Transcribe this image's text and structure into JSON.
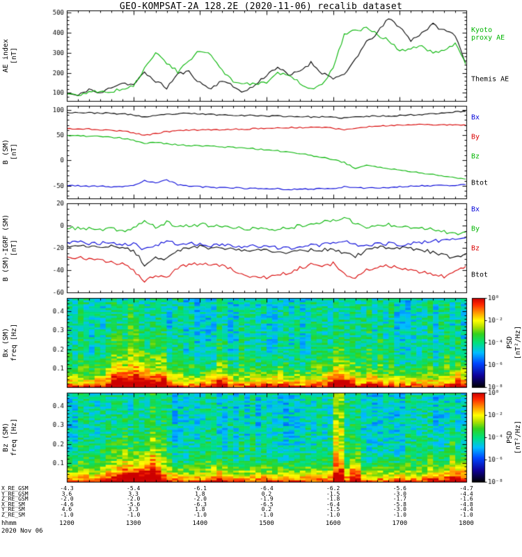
{
  "title": "GEO-KOMPSAT-2A 128.2E (2020-11-06) recalib dataset",
  "x_axis": {
    "range_hours": [
      0,
      6
    ],
    "tick_hours": [
      0,
      1,
      2,
      3,
      4,
      5,
      6
    ]
  },
  "chart_data": [
    {
      "type": "line",
      "name": "ae-index",
      "ylabel": "AE index [nT]",
      "ylabel_display": "AE index\n[nT]",
      "ylim": [
        60,
        510
      ],
      "yticks": [
        100,
        200,
        300,
        400,
        500
      ],
      "yminor_div": 5,
      "jitter": 8,
      "seed": 11,
      "series": [
        {
          "name": "Themis AE",
          "color": "#000000",
          "values": [
            100,
            85,
            120,
            95,
            130,
            150,
            140,
            200,
            160,
            125,
            195,
            205,
            150,
            120,
            165,
            130,
            105,
            140,
            190,
            230,
            185,
            210,
            250,
            200,
            175,
            185,
            270,
            350,
            400,
            470,
            430,
            360,
            400,
            440,
            410,
            390,
            240
          ]
        },
        {
          "name": "Kyoto proxy AE",
          "color": "#00b400",
          "values": [
            95,
            90,
            100,
            110,
            105,
            120,
            135,
            220,
            300,
            250,
            205,
            260,
            310,
            290,
            210,
            160,
            150,
            145,
            150,
            200,
            185,
            150,
            120,
            135,
            230,
            390,
            410,
            420,
            390,
            360,
            305,
            320,
            330,
            300,
            310,
            350,
            235
          ]
        }
      ],
      "legend": [
        {
          "label": "Kyoto\nproxy AE",
          "color": "#00b400"
        },
        {
          "label": "Themis AE",
          "color": "#000000"
        }
      ]
    },
    {
      "type": "line",
      "name": "b-sm",
      "ylabel": "B (SM) [nT]",
      "ylabel_display": "B (SM)\n[nT]",
      "ylim": [
        -75,
        108
      ],
      "yticks": [
        -50,
        0,
        50,
        100
      ],
      "yminor_div": 5,
      "jitter": 1.3,
      "seed": 23,
      "series": [
        {
          "name": "Btot",
          "color": "#000000",
          "values": [
            95,
            95,
            94,
            94,
            93,
            92,
            90,
            86,
            88,
            91,
            92,
            93,
            92,
            91,
            90,
            90,
            89,
            89,
            88,
            88,
            87,
            87,
            86,
            86,
            85,
            84,
            86,
            87,
            88,
            88,
            89,
            90,
            91,
            93,
            94,
            96,
            97
          ]
        },
        {
          "name": "By",
          "color": "#d80000",
          "values": [
            63,
            62,
            62,
            61,
            60,
            58,
            55,
            50,
            53,
            57,
            59,
            60,
            60,
            61,
            61,
            62,
            62,
            63,
            63,
            64,
            65,
            65,
            66,
            66,
            64,
            60,
            63,
            66,
            68,
            69,
            70,
            71,
            71,
            71,
            70,
            70,
            70
          ]
        },
        {
          "name": "Bz",
          "color": "#00b400",
          "values": [
            50,
            49,
            48,
            47,
            46,
            44,
            40,
            34,
            36,
            33,
            31,
            30,
            29,
            28,
            27,
            26,
            25,
            23,
            21,
            19,
            17,
            14,
            10,
            6,
            2,
            -4,
            -16,
            -9,
            -13,
            -16,
            -19,
            -22,
            -25,
            -28,
            -31,
            -34,
            -37
          ]
        },
        {
          "name": "Bx",
          "color": "#0000d8",
          "values": [
            -50,
            -50,
            -51,
            -51,
            -52,
            -52,
            -50,
            -40,
            -44,
            -38,
            -48,
            -51,
            -52,
            -53,
            -54,
            -54,
            -55,
            -55,
            -56,
            -56,
            -57,
            -57,
            -56,
            -56,
            -55,
            -52,
            -54,
            -55,
            -54,
            -53,
            -52,
            -51,
            -50,
            -50,
            -49,
            -49,
            -48
          ]
        }
      ],
      "legend": [
        {
          "label": "Bx",
          "color": "#0000d8"
        },
        {
          "label": "By",
          "color": "#d80000"
        },
        {
          "label": "Bz",
          "color": "#00b400"
        },
        {
          "label": "Btot",
          "color": "#000000"
        }
      ]
    },
    {
      "type": "line",
      "name": "b-sm-minus-igrf",
      "ylabel": "B (SM)-IGRF (SM) [nT]",
      "ylabel_display": "B (SM)-IGRF (SM)\n[nT]",
      "ylim": [
        -60,
        20
      ],
      "yticks": [
        -60,
        -40,
        -20,
        0,
        20
      ],
      "yminor_div": 4,
      "jitter": 1.6,
      "seed": 37,
      "series": [
        {
          "name": "By",
          "color": "#00b400",
          "values": [
            -3,
            -2,
            -3,
            -4,
            -3,
            -5,
            -2,
            4,
            -2,
            3,
            -1,
            0,
            1,
            0,
            -1,
            -2,
            -3,
            -2,
            -4,
            -3,
            -2,
            0,
            2,
            3,
            4,
            8,
            2,
            -2,
            0,
            1,
            0,
            -1,
            -2,
            -3,
            -5,
            -8,
            -6
          ]
        },
        {
          "name": "Bx",
          "color": "#0000d8",
          "values": [
            -15,
            -15,
            -16,
            -16,
            -15,
            -17,
            -16,
            -22,
            -18,
            -14,
            -17,
            -16,
            -17,
            -18,
            -17,
            -18,
            -19,
            -18,
            -19,
            -20,
            -20,
            -19,
            -18,
            -17,
            -16,
            -14,
            -17,
            -18,
            -17,
            -16,
            -17,
            -16,
            -15,
            -14,
            -13,
            -12,
            -11
          ]
        },
        {
          "name": "Btot",
          "color": "#000000",
          "values": [
            -18,
            -18,
            -19,
            -19,
            -18,
            -20,
            -22,
            -35,
            -28,
            -30,
            -22,
            -20,
            -19,
            -20,
            -20,
            -21,
            -22,
            -21,
            -22,
            -23,
            -24,
            -23,
            -22,
            -22,
            -21,
            -25,
            -28,
            -22,
            -20,
            -19,
            -20,
            -21,
            -22,
            -24,
            -27,
            -29,
            -26
          ]
        },
        {
          "name": "Bz",
          "color": "#d80000",
          "values": [
            -28,
            -29,
            -30,
            -31,
            -32,
            -35,
            -40,
            -50,
            -44,
            -47,
            -38,
            -35,
            -34,
            -35,
            -36,
            -40,
            -44,
            -46,
            -47,
            -45,
            -42,
            -38,
            -35,
            -36,
            -34,
            -44,
            -46,
            -40,
            -37,
            -36,
            -38,
            -40,
            -42,
            -44,
            -46,
            -42,
            -36
          ]
        }
      ],
      "legend": [
        {
          "label": "Bx",
          "color": "#0000d8"
        },
        {
          "label": "By",
          "color": "#00b400"
        },
        {
          "label": "Bz",
          "color": "#d80000"
        },
        {
          "label": "Btot",
          "color": "#000000"
        }
      ]
    },
    {
      "type": "heatmap",
      "name": "bx-sm-spectrogram",
      "ylabel": "Bx (SM) freq [Hz]",
      "ylabel_display": "Bx (SM)\nfreq [Hz]",
      "ylim": [
        0,
        0.47
      ],
      "yticks": [
        0.1,
        0.2,
        0.3,
        0.4
      ],
      "yminor_div": 5,
      "psd_log10_range": [
        -8,
        0
      ],
      "colorbar": {
        "label": "PSD [nT²/Hz]",
        "tick_labels": [
          "10⁰",
          "10⁻²",
          "10⁻⁴",
          "10⁻⁶",
          "10⁻⁸"
        ],
        "tick_log10": [
          0,
          -2,
          -4,
          -6,
          -8
        ]
      },
      "base": {
        "floor": -4.3,
        "amp": 4.0,
        "fscale": 0.06
      },
      "noise": 0.8,
      "seed": 42,
      "events": [
        {
          "t": 0.75,
          "w": 0.1,
          "s": 1.8,
          "fs": 0.1
        },
        {
          "t": 1.05,
          "w": 0.38,
          "s": 3.2,
          "fs": 0.18
        },
        {
          "t": 1.45,
          "w": 0.08,
          "s": 1.5,
          "fs": 0.1
        },
        {
          "t": 2.3,
          "w": 0.15,
          "s": 1.6,
          "fs": 0.12
        },
        {
          "t": 3.1,
          "w": 0.12,
          "s": 1.2,
          "fs": 0.1
        },
        {
          "t": 4.1,
          "w": 0.18,
          "s": 2.8,
          "fs": 0.22
        },
        {
          "t": 4.6,
          "w": 0.1,
          "s": 1.5,
          "fs": 0.12
        },
        {
          "t": 5.9,
          "w": 0.15,
          "s": 1.8,
          "fs": 0.1
        }
      ]
    },
    {
      "type": "heatmap",
      "name": "bz-sm-spectrogram",
      "ylabel": "Bz (SM) freq [Hz]",
      "ylabel_display": "Bz (SM)\nfreq [Hz]",
      "ylim": [
        0,
        0.47
      ],
      "yticks": [
        0.1,
        0.2,
        0.3,
        0.4
      ],
      "yminor_div": 5,
      "psd_log10_range": [
        -8,
        0
      ],
      "colorbar": {
        "label": "PSD [nT²/Hz]",
        "tick_labels": [
          "10⁰",
          "10⁻²",
          "10⁻⁴",
          "10⁻⁶",
          "10⁻⁸"
        ],
        "tick_log10": [
          0,
          -2,
          -4,
          -6,
          -8
        ]
      },
      "base": {
        "floor": -4.3,
        "amp": 4.0,
        "fscale": 0.06
      },
      "noise": 0.8,
      "seed": 1337,
      "events": [
        {
          "t": 1.0,
          "w": 0.4,
          "s": 3.0,
          "fs": 0.15
        },
        {
          "t": 1.3,
          "w": 0.1,
          "s": 2.5,
          "fs": 0.2
        },
        {
          "t": 2.3,
          "w": 0.12,
          "s": 1.4,
          "fs": 0.1
        },
        {
          "t": 4.08,
          "w": 0.07,
          "s": 3.5,
          "fs": 0.5
        },
        {
          "t": 4.33,
          "w": 0.06,
          "s": 3.0,
          "fs": 0.45
        },
        {
          "t": 5.5,
          "w": 0.1,
          "s": 1.2,
          "fs": 0.1
        },
        {
          "t": 5.85,
          "w": 0.18,
          "s": 2.0,
          "fs": 0.12
        }
      ]
    }
  ],
  "ephemeris": {
    "rows": [
      {
        "label": "X_RE_GSM",
        "values": [
          "-4.3",
          "-5.4",
          "-6.1",
          "-6.4",
          "-6.2",
          "-5.6",
          "-4.7"
        ]
      },
      {
        "label": "Y_RE_GSM",
        "values": [
          "3.6",
          "3.3",
          "1.8",
          "0.2",
          "-1.5",
          "-3.0",
          "-4.4"
        ]
      },
      {
        "label": "Z_RE_GSM",
        "values": [
          "-2.0",
          "-2.0",
          "-2.0",
          "-1.9",
          "-1.8",
          "-1.7",
          "-1.6"
        ]
      },
      {
        "label": "X_RE_SM",
        "values": [
          "-4.6",
          "-5.6",
          "-6.3",
          "-6.5",
          "-6.4",
          "-5.8",
          "-4.8"
        ]
      },
      {
        "label": "Y_RE_SM",
        "values": [
          "4.6",
          "3.3",
          "1.8",
          "0.2",
          "-1.5",
          "-3.0",
          "-4.4"
        ]
      },
      {
        "label": "Z_RE_SM",
        "values": [
          "-1.0",
          "-1.0",
          "-1.0",
          "-1.0",
          "-1.0",
          "-1.0",
          "-1.0"
        ]
      }
    ],
    "hhmm": {
      "label": "hhmm",
      "values": [
        "1200",
        "1300",
        "1400",
        "1500",
        "1600",
        "1700",
        "1800"
      ]
    },
    "date": "2020 Nov 06"
  }
}
